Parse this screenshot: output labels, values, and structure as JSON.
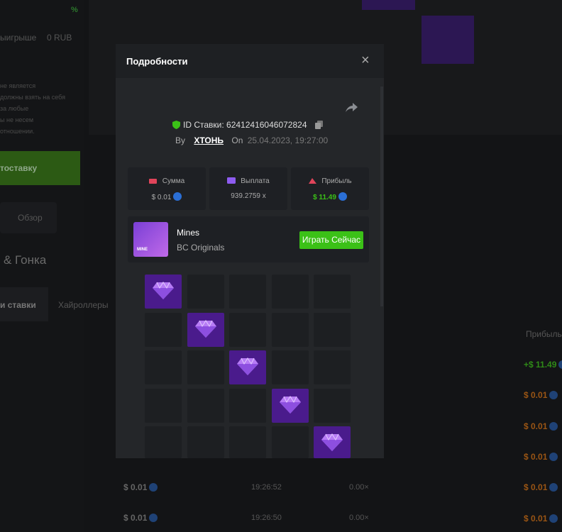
{
  "background": {
    "top_percent": "%",
    "winnings_label": "ыигрыше",
    "winnings_value": "0 RUB",
    "disclaimer": [
      "не является",
      "должны взять на себя",
      "за любые",
      "ы не несем",
      "отношении."
    ],
    "autobet_button": "тоставку",
    "overview_tab": "Обзор",
    "race_title": "& Гонка",
    "tabs": [
      "и ставки",
      "Хайроллеры"
    ],
    "profit_header": "Прибыль",
    "profit_column": [
      "+$ 11.49",
      "$ 0.01",
      "$ 0.01",
      "$ 0.01",
      "$ 0.01",
      "$ 0.01"
    ],
    "rows": [
      {
        "amount": "$ 0.01",
        "time": "19:26:52",
        "payout": "0.00×"
      },
      {
        "amount": "$ 0.01",
        "time": "19:26:50",
        "payout": "0.00×"
      }
    ]
  },
  "modal": {
    "title": "Подробности",
    "bet_id": "ID Ставки: 62412416046072824",
    "by_label": "By",
    "user": "ХТОНЬ",
    "on_label": "On",
    "date": "25.04.2023, 19:27:00",
    "stats": [
      {
        "label": "Сумма",
        "value": "$ 0.01"
      },
      {
        "label": "Выплата",
        "value": "939.2759 x"
      },
      {
        "label": "Прибыль",
        "value": "$ 11.49"
      }
    ],
    "game": {
      "name": "Mines",
      "provider": "BC Originals",
      "thumb_label": "MINE",
      "play_button": "Играть Сейчас"
    }
  }
}
